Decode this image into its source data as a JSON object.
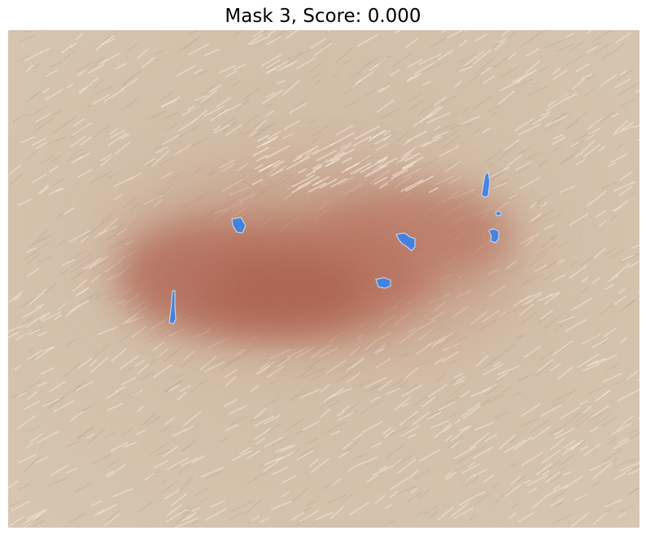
{
  "figure": {
    "title": "Mask 3, Score: 0.000"
  },
  "image": {
    "subject": "skin-lesion-photo",
    "colors": {
      "skin": "#d2c0aa",
      "lesion": "#b46c58",
      "lesion_core": "#a85a48",
      "mask": "#3c82e6",
      "mask_edge": "#c8d8ee"
    }
  }
}
